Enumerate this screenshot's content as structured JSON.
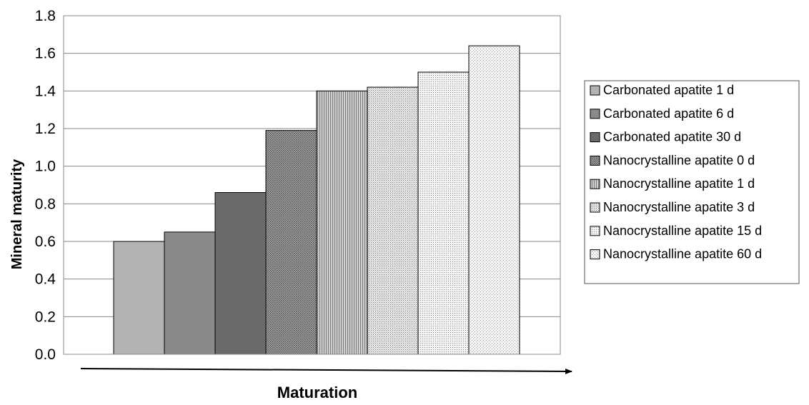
{
  "chart_data": {
    "type": "bar",
    "title": "",
    "xlabel": "Maturation",
    "ylabel": "Mineral maturity",
    "ylim": [
      0,
      1.8
    ],
    "yticks": [
      "0.0",
      "0.2",
      "0.4",
      "0.6",
      "0.8",
      "1.0",
      "1.2",
      "1.4",
      "1.6",
      "1.8"
    ],
    "grid": true,
    "legend_position": "right",
    "series": [
      {
        "name": "Carbonated apatite 1 d",
        "value": 0.6,
        "color": "#b3b3b3",
        "pattern": "solid"
      },
      {
        "name": "Carbonated apatite 6 d",
        "value": 0.65,
        "color": "#8a8a8a",
        "pattern": "solid"
      },
      {
        "name": "Carbonated apatite 30 d",
        "value": 0.86,
        "color": "#6a6a6a",
        "pattern": "solid"
      },
      {
        "name": "Nanocrystalline apatite 0 d",
        "value": 1.19,
        "color": "#8c8c8c",
        "pattern": "dense-dots"
      },
      {
        "name": "Nanocrystalline apatite 1 d",
        "value": 1.4,
        "color": "#b0b0b0",
        "pattern": "vertical-lines"
      },
      {
        "name": "Nanocrystalline apatite 3 d",
        "value": 1.42,
        "color": "#d4d4d4",
        "pattern": "dots"
      },
      {
        "name": "Nanocrystalline apatite 15 d",
        "value": 1.5,
        "color": "#e0e0e0",
        "pattern": "fine-dots"
      },
      {
        "name": "Nanocrystalline apatite 60 d",
        "value": 1.64,
        "color": "#ececec",
        "pattern": "sparse-dots"
      }
    ]
  }
}
